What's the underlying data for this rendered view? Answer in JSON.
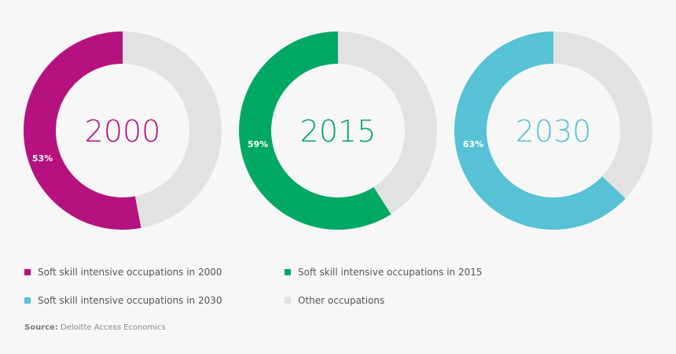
{
  "chart_data": [
    {
      "type": "donut",
      "center_label": "2000",
      "value_label": "53%",
      "slices": [
        {
          "legend": "Soft skill intensive occupations in 2000",
          "value": 53,
          "color": "#b5127f"
        },
        {
          "legend": "Other occupations",
          "value": 47,
          "color": "#e2e2e2"
        }
      ]
    },
    {
      "type": "donut",
      "center_label": "2015",
      "value_label": "59%",
      "slices": [
        {
          "legend": "Soft skill intensive occupations in 2015",
          "value": 59,
          "color": "#00a865"
        },
        {
          "legend": "Other occupations",
          "value": 41,
          "color": "#e2e2e2"
        }
      ]
    },
    {
      "type": "donut",
      "center_label": "2030",
      "value_label": "63%",
      "slices": [
        {
          "legend": "Soft skill intensive occupations in 2030",
          "value": 63,
          "color": "#57c1d5"
        },
        {
          "legend": "Other occupations",
          "value": 37,
          "color": "#e2e2e2"
        }
      ]
    }
  ],
  "legend": [
    {
      "label": "Soft skill intensive occupations in 2000",
      "color": "#b5127f"
    },
    {
      "label": "Soft skill intensive occupations in 2015",
      "color": "#00a865"
    },
    {
      "label": "Soft skill intensive occupations in 2030",
      "color": "#57c1d5"
    },
    {
      "label": "Other occupations",
      "color": "#e2e2e2"
    }
  ],
  "source": {
    "label": "Source:",
    "text": "Deloitte Access Economics"
  }
}
